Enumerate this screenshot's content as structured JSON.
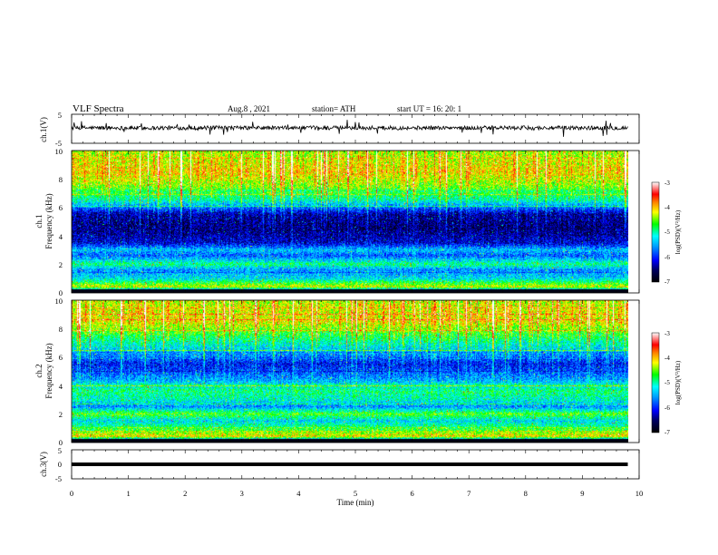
{
  "header": {
    "title": "VLF  Spectra",
    "date": "Aug.8  , 2021",
    "station": "station= ATH",
    "start": "start  UT  =    16: 20: 1"
  },
  "chart_data": [
    {
      "type": "line",
      "name": "ch1-waveform",
      "ylabel": "ch.1(V)",
      "ylim": [
        -5,
        5
      ],
      "yticks": [
        "5",
        "-5"
      ],
      "xlim": [
        0,
        10
      ],
      "data_extent_min": 9.8,
      "baseline": 0.3,
      "series_color": "#000000"
    },
    {
      "type": "heatmap",
      "name": "ch1-spectrogram",
      "ylabel_line1": "ch.1",
      "ylabel_line2": "Frequency  (kHz)",
      "ylim": [
        0,
        10
      ],
      "yticks": [
        "0",
        "2",
        "4",
        "6",
        "8",
        "10"
      ],
      "xlim": [
        0,
        10
      ],
      "data_extent_min": 9.8,
      "colorbar": {
        "label": "log(PSD)(V²/Hz)",
        "range": [
          -7,
          -3
        ],
        "ticks": [
          "-3",
          "-4",
          "-5",
          "-6",
          "-7"
        ]
      },
      "frequency_profile_khz": [
        {
          "f": 0.0,
          "v": -6.9
        },
        {
          "f": 0.4,
          "v": -4.2
        },
        {
          "f": 1.0,
          "v": -5.3
        },
        {
          "f": 1.6,
          "v": -5.6
        },
        {
          "f": 2.0,
          "v": -4.9
        },
        {
          "f": 2.6,
          "v": -5.8
        },
        {
          "f": 3.0,
          "v": -5.4
        },
        {
          "f": 3.5,
          "v": -6.2
        },
        {
          "f": 4.5,
          "v": -6.5
        },
        {
          "f": 5.5,
          "v": -6.4
        },
        {
          "f": 6.5,
          "v": -5.1
        },
        {
          "f": 7.5,
          "v": -4.5
        },
        {
          "f": 8.5,
          "v": -4.1
        },
        {
          "f": 10.0,
          "v": -4.4
        }
      ]
    },
    {
      "type": "heatmap",
      "name": "ch2-spectrogram",
      "ylabel_line1": "ch.2",
      "ylabel_line2": "Frequency  (kHz)",
      "ylim": [
        0,
        10
      ],
      "yticks": [
        "0",
        "2",
        "4",
        "6",
        "8",
        "10"
      ],
      "xlim": [
        0,
        10
      ],
      "data_extent_min": 9.8,
      "colorbar": {
        "label": "log(PSD)(V²/Hz)",
        "range": [
          -7,
          -3
        ],
        "ticks": [
          "-3",
          "-4",
          "-5",
          "-6",
          "-7"
        ]
      },
      "frequency_profile_khz": [
        {
          "f": 0.0,
          "v": -6.9
        },
        {
          "f": 0.4,
          "v": -4.1
        },
        {
          "f": 1.0,
          "v": -4.8
        },
        {
          "f": 1.5,
          "v": -5.3
        },
        {
          "f": 2.0,
          "v": -4.6
        },
        {
          "f": 2.5,
          "v": -5.6
        },
        {
          "f": 3.0,
          "v": -5.1
        },
        {
          "f": 3.6,
          "v": -4.9
        },
        {
          "f": 4.5,
          "v": -5.6
        },
        {
          "f": 5.5,
          "v": -6.1
        },
        {
          "f": 6.5,
          "v": -5.4
        },
        {
          "f": 7.5,
          "v": -4.8
        },
        {
          "f": 8.5,
          "v": -4.2
        },
        {
          "f": 10.0,
          "v": -4.3
        }
      ]
    },
    {
      "type": "line",
      "name": "ch3-waveform",
      "ylabel": "ch.3(V)",
      "ylim": [
        -5,
        5
      ],
      "yticks": [
        "5",
        "0",
        "-5"
      ],
      "xlim": [
        0,
        10
      ],
      "data_extent_min": 9.8,
      "baseline": 0.0,
      "series_color": "#000000"
    }
  ],
  "xaxis": {
    "label": "Time  (min)",
    "ticks": [
      "0",
      "1",
      "2",
      "3",
      "4",
      "5",
      "6",
      "7",
      "8",
      "9",
      "10"
    ]
  }
}
